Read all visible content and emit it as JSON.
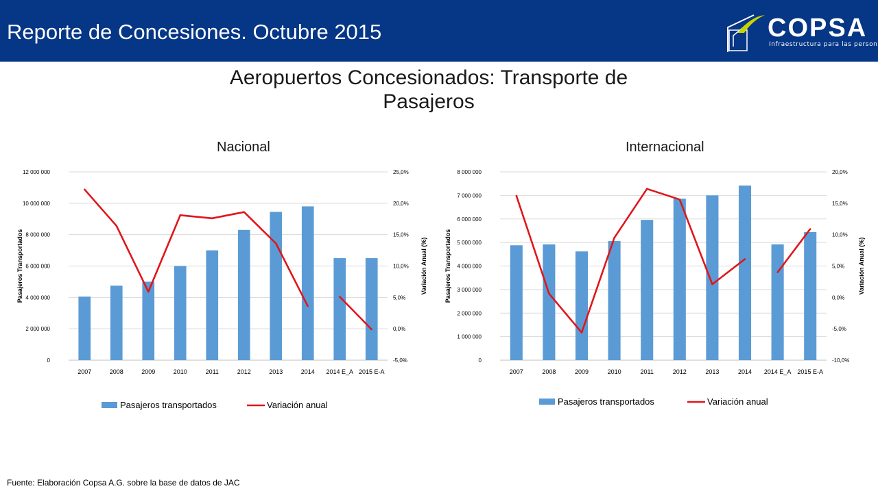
{
  "header": {
    "title": "Reporte de Concesiones. Octubre 2015",
    "background": "#063686"
  },
  "logo": {
    "name": "COPSA",
    "tagline": "Infraestructura para las personas",
    "accent": "#c8d400"
  },
  "page": {
    "title_line1": "Aeropuertos Concesionados: Transporte de",
    "title_line2": "Pasajeros"
  },
  "colors": {
    "bars": "#5b9bd5",
    "line": "#e0161a",
    "grid": "#d9d9d9"
  },
  "chart_data": [
    {
      "type": "bar",
      "title": "Nacional",
      "categories": [
        "2007",
        "2008",
        "2009",
        "2010",
        "2011",
        "2012",
        "2013",
        "2014",
        "2014 E_A",
        "2015 E-A"
      ],
      "ylabel": "Pasajeros Transportados",
      "y2label": "Variación Anual (%)",
      "ylim": [
        0,
        12000000
      ],
      "y2lim": [
        -5,
        25
      ],
      "yticks": [
        "0",
        "2 000 000",
        "4 000 000",
        "6 000 000",
        "8 000 000",
        "10 000 000",
        "12 000 000"
      ],
      "y2ticks": [
        "-5,0%",
        "0,0%",
        "5,0%",
        "10,0%",
        "15,0%",
        "20,0%",
        "25,0%"
      ],
      "grid": true,
      "legend": "bottom",
      "series": [
        {
          "name": "Pasajeros transportados",
          "type": "bar",
          "axis": "left",
          "values": [
            4050000,
            4750000,
            5000000,
            6000000,
            7000000,
            8300000,
            9450000,
            9800000,
            6500000,
            6500000
          ]
        },
        {
          "name": "Variación anual",
          "type": "line",
          "axis": "right",
          "values": [
            22.2,
            16.4,
            5.9,
            18.1,
            17.6,
            18.6,
            13.6,
            3.6,
            5.1,
            -0.1
          ],
          "segments": [
            [
              0,
              7
            ],
            [
              8,
              9
            ]
          ]
        }
      ]
    },
    {
      "type": "bar",
      "title": "Internacional",
      "categories": [
        "2007",
        "2008",
        "2009",
        "2010",
        "2011",
        "2012",
        "2013",
        "2014",
        "2014 E_A",
        "2015 E-A"
      ],
      "ylabel": "Pasajeros Transportados",
      "y2label": "Variación Anual (%)",
      "ylim": [
        0,
        8000000
      ],
      "y2lim": [
        -10,
        20
      ],
      "yticks": [
        "0",
        "1 000 000",
        "2 000 000",
        "3 000 000",
        "4 000 000",
        "5 000 000",
        "6 000 000",
        "7 000 000",
        "8 000 000"
      ],
      "y2ticks": [
        "-10,0%",
        "-5,0%",
        "0,0%",
        "5,0%",
        "10,0%",
        "15,0%",
        "20,0%"
      ],
      "grid": true,
      "legend": "bottom",
      "series": [
        {
          "name": "Pasajeros transportados",
          "type": "bar",
          "axis": "left",
          "values": [
            4880000,
            4920000,
            4620000,
            5060000,
            5960000,
            6860000,
            7000000,
            7420000,
            4920000,
            5440000
          ]
        },
        {
          "name": "Variación anual",
          "type": "line",
          "axis": "right",
          "values": [
            16.2,
            0.6,
            -5.6,
            9.5,
            17.3,
            15.6,
            2.1,
            6.1,
            4.0,
            10.9
          ],
          "segments": [
            [
              0,
              7
            ],
            [
              8,
              9
            ]
          ]
        }
      ]
    }
  ],
  "footer": {
    "source": "Fuente: Elaboración Copsa A.G. sobre la base de datos de JAC"
  }
}
